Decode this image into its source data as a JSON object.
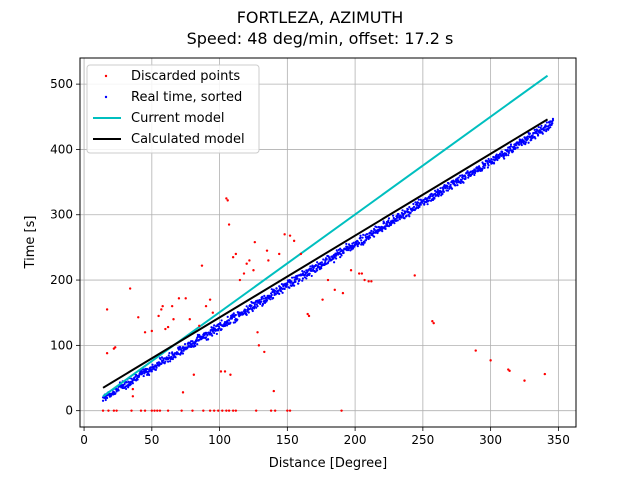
{
  "chart_data": {
    "type": "scatter",
    "title": "FORTLEZA, AZIMUTH",
    "subtitle": "Speed: 48 deg/min, offset: 17.2 s",
    "xlabel": "Distance [Degree]",
    "ylabel": "Time [s]",
    "xlim": [
      -3,
      363
    ],
    "ylim": [
      -25,
      540
    ],
    "xticks": [
      0,
      50,
      100,
      150,
      200,
      250,
      300,
      350
    ],
    "yticks": [
      0,
      100,
      200,
      300,
      400,
      500
    ],
    "grid": true,
    "legend_position": "upper-left",
    "series": [
      {
        "name": "Discarded points",
        "kind": "points",
        "color": "#ff0000",
        "points": [
          [
            17,
            155
          ],
          [
            17,
            88
          ],
          [
            22,
            95
          ],
          [
            23,
            97
          ],
          [
            34,
            187
          ],
          [
            36,
            22
          ],
          [
            36,
            33
          ],
          [
            40,
            143
          ],
          [
            45,
            120
          ],
          [
            50,
            122
          ],
          [
            55,
            145
          ],
          [
            57,
            155
          ],
          [
            58,
            160
          ],
          [
            60,
            125
          ],
          [
            62,
            128
          ],
          [
            65,
            160
          ],
          [
            66,
            140
          ],
          [
            70,
            172
          ],
          [
            73,
            28
          ],
          [
            75,
            172
          ],
          [
            78,
            140
          ],
          [
            81,
            55
          ],
          [
            85,
            130
          ],
          [
            87,
            222
          ],
          [
            90,
            160
          ],
          [
            93,
            170
          ],
          [
            95,
            150
          ],
          [
            101,
            60
          ],
          [
            104,
            60
          ],
          [
            105,
            325
          ],
          [
            106,
            322
          ],
          [
            107,
            285
          ],
          [
            108,
            55
          ],
          [
            110,
            235
          ],
          [
            112,
            240
          ],
          [
            115,
            200
          ],
          [
            118,
            210
          ],
          [
            120,
            225
          ],
          [
            122,
            230
          ],
          [
            125,
            215
          ],
          [
            126,
            258
          ],
          [
            128,
            120
          ],
          [
            129,
            100
          ],
          [
            133,
            90
          ],
          [
            135,
            245
          ],
          [
            136,
            230
          ],
          [
            140,
            30
          ],
          [
            144,
            240
          ],
          [
            148,
            270
          ],
          [
            152,
            268
          ],
          [
            155,
            260
          ],
          [
            160,
            240
          ],
          [
            165,
            148
          ],
          [
            166,
            145
          ],
          [
            176,
            170
          ],
          [
            180,
            200
          ],
          [
            185,
            185
          ],
          [
            191,
            180
          ],
          [
            197,
            215
          ],
          [
            203,
            210
          ],
          [
            205,
            210
          ],
          [
            207,
            200
          ],
          [
            210,
            198
          ],
          [
            212,
            198
          ],
          [
            244,
            207
          ],
          [
            257,
            137
          ],
          [
            258,
            134
          ],
          [
            289,
            92
          ],
          [
            300,
            77
          ],
          [
            313,
            63
          ],
          [
            314,
            61
          ],
          [
            325,
            46
          ],
          [
            340,
            56
          ],
          [
            14,
            0
          ],
          [
            18,
            0
          ],
          [
            22,
            0
          ],
          [
            24,
            0
          ],
          [
            35,
            0
          ],
          [
            42,
            0
          ],
          [
            45,
            0
          ],
          [
            50,
            0
          ],
          [
            52,
            0
          ],
          [
            54,
            0
          ],
          [
            56,
            0
          ],
          [
            62,
            0
          ],
          [
            72,
            0
          ],
          [
            80,
            0
          ],
          [
            88,
            0
          ],
          [
            93,
            0
          ],
          [
            96,
            0
          ],
          [
            99,
            0
          ],
          [
            102,
            0
          ],
          [
            105,
            0
          ],
          [
            107,
            0
          ],
          [
            110,
            0
          ],
          [
            112,
            0
          ],
          [
            127,
            0
          ],
          [
            138,
            0
          ],
          [
            141,
            0
          ],
          [
            150,
            0
          ],
          [
            152,
            0
          ],
          [
            190,
            0
          ]
        ]
      },
      {
        "name": "Real time, sorted",
        "kind": "points",
        "color": "#0000ff",
        "slope": 1.267,
        "intercept": 2.0,
        "x_from": 14,
        "x_to": 346
      },
      {
        "name": "Current model",
        "kind": "line",
        "color": "#00bfbf",
        "x": [
          14,
          342
        ],
        "y": [
          22,
          513
        ]
      },
      {
        "name": "Calculated model",
        "kind": "line",
        "color": "#000000",
        "x": [
          14,
          342
        ],
        "y": [
          35,
          446
        ]
      }
    ]
  }
}
